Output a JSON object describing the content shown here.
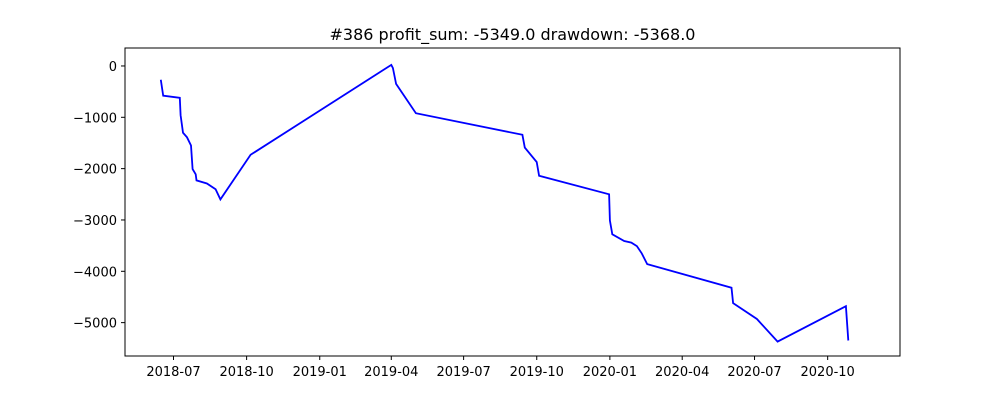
{
  "chart_data": {
    "type": "line",
    "title": "#386   profit_sum: -5349.0 drawdown: -5368.0",
    "xlabel": "",
    "ylabel": "",
    "x_range": [
      "2018-05-01",
      "2020-12-31"
    ],
    "ylim": [
      -5650,
      350
    ],
    "grid": false,
    "legend": "none",
    "x_ticks": [
      {
        "date": "2018-07-01",
        "label": "2018-07"
      },
      {
        "date": "2018-10-01",
        "label": "2018-10"
      },
      {
        "date": "2019-01-01",
        "label": "2019-01"
      },
      {
        "date": "2019-04-01",
        "label": "2019-04"
      },
      {
        "date": "2019-07-01",
        "label": "2019-07"
      },
      {
        "date": "2019-10-01",
        "label": "2019-10"
      },
      {
        "date": "2020-01-01",
        "label": "2020-01"
      },
      {
        "date": "2020-04-01",
        "label": "2020-04"
      },
      {
        "date": "2020-07-01",
        "label": "2020-07"
      },
      {
        "date": "2020-10-01",
        "label": "2020-10"
      }
    ],
    "y_ticks": [
      {
        "value": 0,
        "label": "0"
      },
      {
        "value": -1000,
        "label": "−1000"
      },
      {
        "value": -2000,
        "label": "−2000"
      },
      {
        "value": -3000,
        "label": "−3000"
      },
      {
        "value": -4000,
        "label": "−4000"
      },
      {
        "value": -5000,
        "label": "−5000"
      }
    ],
    "series": [
      {
        "color": "#0000ff",
        "points": [
          [
            "2018-06-15",
            -270
          ],
          [
            "2018-06-18",
            -580
          ],
          [
            "2018-07-09",
            -620
          ],
          [
            "2018-07-10",
            -960
          ],
          [
            "2018-07-13",
            -1300
          ],
          [
            "2018-07-18",
            -1390
          ],
          [
            "2018-07-23",
            -1550
          ],
          [
            "2018-07-25",
            -2010
          ],
          [
            "2018-07-29",
            -2110
          ],
          [
            "2018-07-30",
            -2230
          ],
          [
            "2018-08-12",
            -2290
          ],
          [
            "2018-08-23",
            -2400
          ],
          [
            "2018-08-29",
            -2600
          ],
          [
            "2018-10-06",
            -1730
          ],
          [
            "2019-04-01",
            20
          ],
          [
            "2019-04-03",
            -40
          ],
          [
            "2019-04-07",
            -350
          ],
          [
            "2019-05-02",
            -920
          ],
          [
            "2019-09-13",
            -1340
          ],
          [
            "2019-09-16",
            -1590
          ],
          [
            "2019-10-01",
            -1870
          ],
          [
            "2019-10-04",
            -2140
          ],
          [
            "2019-12-31",
            -2500
          ],
          [
            "2020-01-01",
            -3010
          ],
          [
            "2020-01-04",
            -3280
          ],
          [
            "2020-01-19",
            -3410
          ],
          [
            "2020-01-28",
            -3440
          ],
          [
            "2020-02-04",
            -3510
          ],
          [
            "2020-02-10",
            -3650
          ],
          [
            "2020-02-17",
            -3860
          ],
          [
            "2020-06-02",
            -4320
          ],
          [
            "2020-06-04",
            -4620
          ],
          [
            "2020-07-04",
            -4930
          ],
          [
            "2020-07-30",
            -5370
          ],
          [
            "2020-10-24",
            -4680
          ],
          [
            "2020-10-27",
            -5349
          ]
        ]
      }
    ]
  }
}
